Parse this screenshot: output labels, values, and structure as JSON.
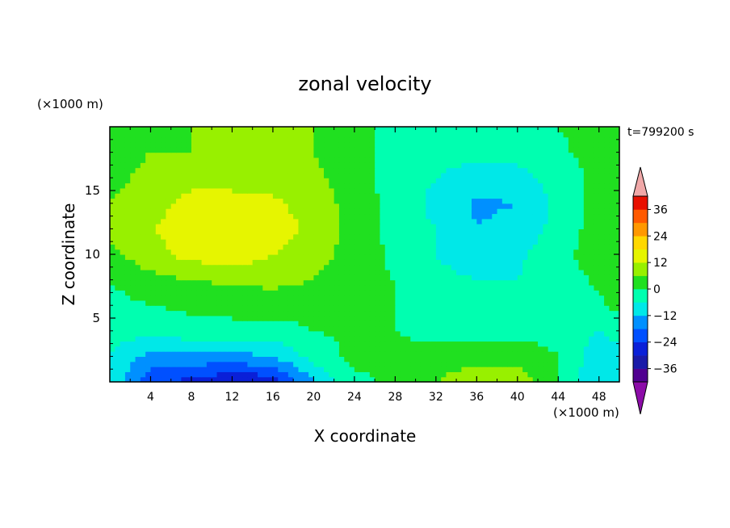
{
  "chart_data": {
    "type": "heatmap",
    "title": "zonal velocity",
    "xlabel": "X coordinate",
    "ylabel": "Z coordinate",
    "x_unit": "(×1000 m)",
    "y_unit": "(×1000 m)",
    "time_label": "t=799200 s",
    "xlim": [
      0,
      50
    ],
    "ylim": [
      0,
      20
    ],
    "x_ticks": [
      "4",
      "8",
      "12",
      "16",
      "20",
      "24",
      "28",
      "32",
      "36",
      "40",
      "44",
      "48"
    ],
    "y_ticks": [
      "5",
      "10",
      "15"
    ],
    "colorbar": {
      "tick_labels": [
        "36",
        "24",
        "12",
        "0",
        "-12",
        "-24",
        "-36"
      ],
      "levels": [
        -42,
        -36,
        -30,
        -24,
        -18,
        -12,
        -6,
        0,
        6,
        12,
        18,
        24,
        30,
        36,
        42
      ],
      "colors": [
        "#500090",
        "#1a1aa8",
        "#0a20d8",
        "#0050ff",
        "#0090ff",
        "#00e8e8",
        "#00ffb0",
        "#20e020",
        "#98f000",
        "#e6f500",
        "#ffd800",
        "#ff9800",
        "#ff5a00",
        "#e81000"
      ],
      "under_color": "#8c0ca8",
      "over_color": "#f0a8a8"
    },
    "grid_x": [
      0,
      4,
      8,
      12,
      16,
      20,
      24,
      28,
      32,
      36,
      40,
      44,
      48,
      50
    ],
    "grid_y": [
      0,
      2,
      4,
      6,
      8,
      10,
      12,
      14,
      16,
      18,
      20
    ],
    "values": [
      [
        -8,
        -22,
        -26,
        -30,
        -28,
        -12,
        -2,
        2,
        6,
        10,
        10,
        0,
        -12,
        -10
      ],
      [
        -6,
        -14,
        -14,
        -14,
        -12,
        -4,
        2,
        1,
        3,
        4,
        4,
        0,
        -10,
        -8
      ],
      [
        -4,
        -4,
        -2,
        -2,
        -2,
        0,
        1,
        0,
        -2,
        -2,
        -2,
        -2,
        -6,
        -4
      ],
      [
        -2,
        0,
        1,
        2,
        2,
        2,
        1,
        0,
        -3,
        -3,
        -3,
        -3,
        -1,
        2
      ],
      [
        0,
        4,
        6,
        7,
        8,
        6,
        1,
        0,
        -5,
        -6,
        -6,
        -3,
        1,
        3
      ],
      [
        4,
        10,
        14,
        16,
        12,
        9,
        3,
        -1,
        -6,
        -8,
        -7,
        -2,
        3,
        3
      ],
      [
        8,
        12,
        14,
        18,
        14,
        11,
        3,
        -2,
        -6,
        -12,
        -10,
        -4,
        3,
        4
      ],
      [
        6,
        10,
        14,
        14,
        13,
        10,
        3,
        -2,
        -8,
        -13,
        -12,
        -4,
        2,
        3
      ],
      [
        4,
        8,
        10,
        10,
        10,
        8,
        2,
        -2,
        -6,
        -9,
        -8,
        -4,
        2,
        3
      ],
      [
        3,
        6,
        6,
        6,
        6,
        6,
        1,
        -1,
        -4,
        -4,
        -4,
        -1,
        2,
        3
      ],
      [
        2,
        5,
        6,
        6,
        6,
        6,
        1,
        -1,
        -3,
        -3,
        -3,
        0,
        2,
        3
      ]
    ]
  }
}
